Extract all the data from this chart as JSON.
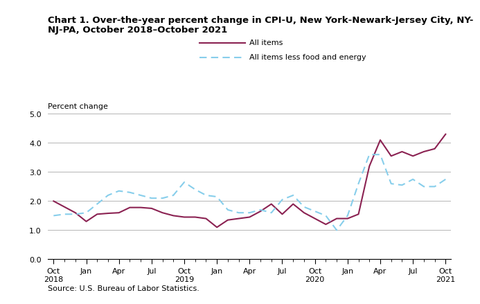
{
  "title_line1": "Chart 1. Over-the-year percent change in CPI-U, New York-Newark-Jersey City, NY-",
  "title_line2": "NJ-PA, October 2018–October 2021",
  "ylabel": "Percent change",
  "source": "Source: U.S. Bureau of Labor Statistics.",
  "ylim": [
    0.0,
    5.0
  ],
  "yticks": [
    0.0,
    1.0,
    2.0,
    3.0,
    4.0,
    5.0
  ],
  "legend_labels": [
    "All items",
    "All items less food and energy"
  ],
  "all_items_color": "#8B2252",
  "core_color": "#87CEEB",
  "major_tick_positions": [
    0,
    3,
    6,
    9,
    12,
    15,
    18,
    21,
    24,
    27,
    30,
    33,
    36
  ],
  "major_tick_labels": [
    "Oct\n2018",
    "Jan",
    "Apr",
    "Jul",
    "Oct\n2019",
    "Jan",
    "Apr",
    "Jul",
    "Oct\n2020",
    "Jan",
    "Apr",
    "Jul",
    "Oct\n2021"
  ],
  "all_items_y": [
    2.0,
    1.8,
    1.6,
    1.3,
    1.55,
    1.58,
    1.6,
    1.78,
    1.78,
    1.75,
    1.6,
    1.5,
    1.45,
    1.45,
    1.4,
    1.1,
    1.35,
    1.4,
    1.45,
    1.65,
    1.9,
    1.55,
    1.9,
    1.6,
    1.4,
    1.2,
    1.4,
    1.4,
    1.55,
    3.2,
    4.1,
    3.55,
    3.7,
    3.55,
    3.7,
    3.8,
    4.3
  ],
  "core_y": [
    1.5,
    1.55,
    1.55,
    1.6,
    1.9,
    2.2,
    2.35,
    2.3,
    2.2,
    2.1,
    2.1,
    2.2,
    2.65,
    2.4,
    2.2,
    2.15,
    1.7,
    1.6,
    1.6,
    1.7,
    1.6,
    2.05,
    2.2,
    1.8,
    1.65,
    1.5,
    1.0,
    1.5,
    2.6,
    3.6,
    3.6,
    2.6,
    2.55,
    2.75,
    2.5,
    2.5,
    2.75
  ]
}
